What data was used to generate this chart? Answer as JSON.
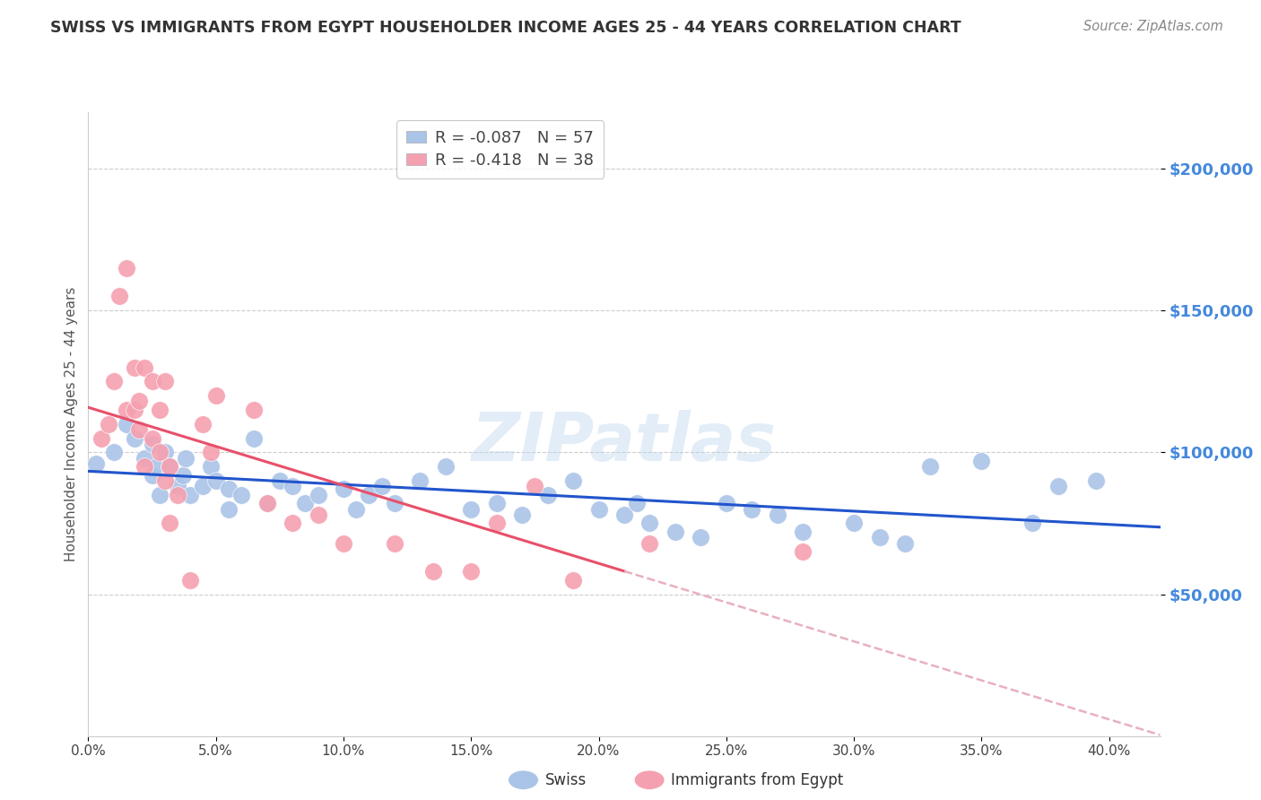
{
  "title": "SWISS VS IMMIGRANTS FROM EGYPT HOUSEHOLDER INCOME AGES 25 - 44 YEARS CORRELATION CHART",
  "source": "Source: ZipAtlas.com",
  "ylabel": "Householder Income Ages 25 - 44 years",
  "xlabel_ticks": [
    "0.0%",
    "5.0%",
    "10.0%",
    "15.0%",
    "20.0%",
    "25.0%",
    "30.0%",
    "35.0%",
    "40.0%"
  ],
  "xlim": [
    0.0,
    0.42
  ],
  "ylim": [
    0,
    220000
  ],
  "yticks": [
    50000,
    100000,
    150000,
    200000
  ],
  "ytick_labels": [
    "$50,000",
    "$100,000",
    "$150,000",
    "$200,000"
  ],
  "legend1_r": "-0.087",
  "legend1_n": "57",
  "legend2_r": "-0.418",
  "legend2_n": "38",
  "swiss_color": "#aac4e8",
  "egypt_color": "#f5a0b0",
  "swiss_line_color": "#2255cc",
  "egypt_line_color": "#e8506a",
  "egypt_line_dash_color": "#e8b0be",
  "watermark": "ZIPatlas",
  "title_color": "#333333",
  "ytick_color": "#4488dd",
  "grid_color": "#cccccc",
  "swiss_x": [
    0.003,
    0.01,
    0.015,
    0.018,
    0.022,
    0.025,
    0.025,
    0.027,
    0.028,
    0.03,
    0.032,
    0.035,
    0.037,
    0.038,
    0.04,
    0.045,
    0.048,
    0.05,
    0.055,
    0.055,
    0.06,
    0.065,
    0.07,
    0.075,
    0.08,
    0.085,
    0.09,
    0.1,
    0.105,
    0.11,
    0.115,
    0.12,
    0.13,
    0.14,
    0.15,
    0.16,
    0.17,
    0.18,
    0.19,
    0.2,
    0.21,
    0.215,
    0.22,
    0.23,
    0.24,
    0.25,
    0.26,
    0.27,
    0.28,
    0.3,
    0.31,
    0.32,
    0.33,
    0.35,
    0.37,
    0.38,
    0.395
  ],
  "swiss_y": [
    96000,
    100000,
    110000,
    105000,
    98000,
    103000,
    92000,
    95000,
    85000,
    100000,
    95000,
    88000,
    92000,
    98000,
    85000,
    88000,
    95000,
    90000,
    80000,
    87000,
    85000,
    105000,
    82000,
    90000,
    88000,
    82000,
    85000,
    87000,
    80000,
    85000,
    88000,
    82000,
    90000,
    95000,
    80000,
    82000,
    78000,
    85000,
    90000,
    80000,
    78000,
    82000,
    75000,
    72000,
    70000,
    82000,
    80000,
    78000,
    72000,
    75000,
    70000,
    68000,
    95000,
    97000,
    75000,
    88000,
    90000
  ],
  "egypt_x": [
    0.005,
    0.008,
    0.01,
    0.012,
    0.015,
    0.015,
    0.018,
    0.018,
    0.02,
    0.02,
    0.022,
    0.022,
    0.025,
    0.025,
    0.028,
    0.028,
    0.03,
    0.03,
    0.032,
    0.032,
    0.035,
    0.04,
    0.045,
    0.048,
    0.05,
    0.065,
    0.07,
    0.08,
    0.09,
    0.1,
    0.12,
    0.135,
    0.15,
    0.16,
    0.175,
    0.19,
    0.22,
    0.28
  ],
  "egypt_y": [
    105000,
    110000,
    125000,
    155000,
    115000,
    165000,
    115000,
    130000,
    108000,
    118000,
    95000,
    130000,
    105000,
    125000,
    115000,
    100000,
    90000,
    125000,
    95000,
    75000,
    85000,
    55000,
    110000,
    100000,
    120000,
    115000,
    82000,
    75000,
    78000,
    68000,
    68000,
    58000,
    58000,
    75000,
    88000,
    55000,
    68000,
    65000
  ],
  "egypt_line_solid_end": 0.21
}
